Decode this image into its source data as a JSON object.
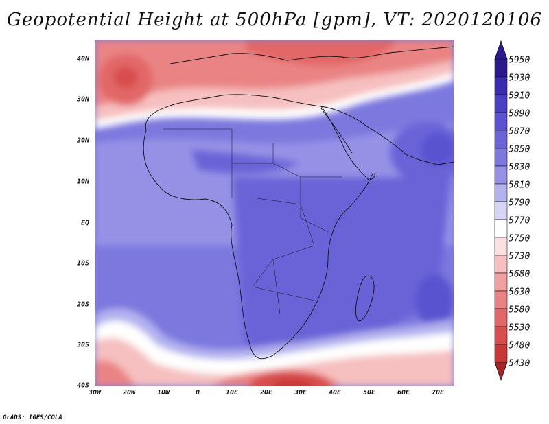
{
  "title": "Geopotential Height at 500hPa [gpm], VT: 2020120106",
  "credit": "GrADS: IGES/COLA",
  "map": {
    "variable": "Geopotential Height at 500hPa",
    "units": "gpm",
    "valid_time": "2020120106",
    "lon_range": [
      -30,
      75
    ],
    "lat_range": [
      -40,
      45
    ],
    "lat_labels": [
      "40N",
      "30N",
      "20N",
      "10N",
      "EQ",
      "10S",
      "20S",
      "30S",
      "40S"
    ],
    "lat_values": [
      40,
      30,
      20,
      10,
      0,
      -10,
      -20,
      -30,
      -40
    ],
    "lon_labels": [
      "30W",
      "20W",
      "10W",
      "0",
      "10E",
      "20E",
      "30E",
      "40E",
      "50E",
      "60E",
      "70E"
    ],
    "lon_values": [
      -30,
      -20,
      -10,
      0,
      10,
      20,
      30,
      40,
      50,
      60,
      70
    ]
  },
  "colorbar": {
    "levels": [
      "5950",
      "5930",
      "5910",
      "5890",
      "5870",
      "5850",
      "5830",
      "5810",
      "5790",
      "5770",
      "5750",
      "5730",
      "5680",
      "5630",
      "5580",
      "5530",
      "5480",
      "5430"
    ],
    "colors": [
      "#2a1a8e",
      "#3a2cb0",
      "#4a40c4",
      "#5a52d0",
      "#6a64d8",
      "#7c78de",
      "#9592e6",
      "#b4b2ee",
      "#d6d5f6",
      "#ffffff",
      "#fbe0e0",
      "#f6c0c0",
      "#f0a0a0",
      "#ea8484",
      "#e26868",
      "#d84e4e",
      "#c83838",
      "#a82424"
    ]
  }
}
